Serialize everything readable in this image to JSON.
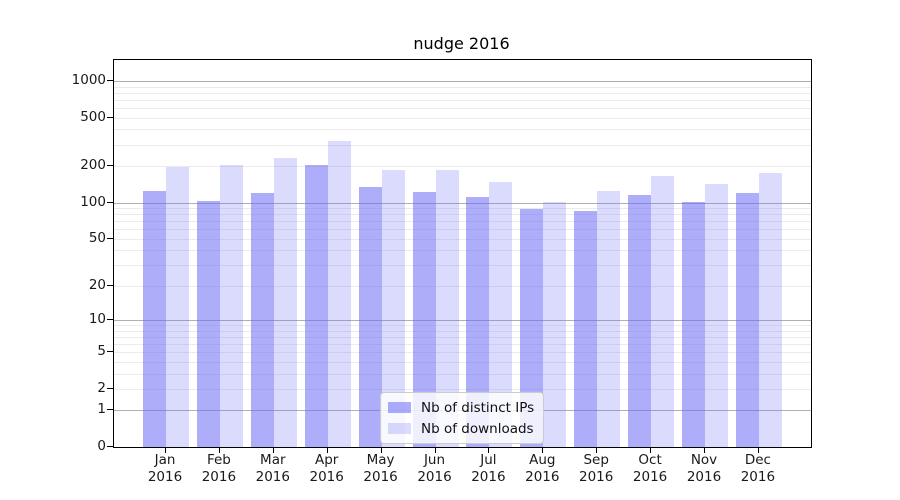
{
  "chart_data": {
    "type": "bar",
    "title": "nudge 2016",
    "months": [
      "Jan",
      "Feb",
      "Mar",
      "Apr",
      "May",
      "Jun",
      "Jul",
      "Aug",
      "Sep",
      "Oct",
      "Nov",
      "Dec"
    ],
    "year": "2016",
    "categories": [
      "Jan 2016",
      "Feb 2016",
      "Mar 2016",
      "Apr 2016",
      "May 2016",
      "Jun 2016",
      "Jul 2016",
      "Aug 2016",
      "Sep 2016",
      "Oct 2016",
      "Nov 2016",
      "Dec 2016"
    ],
    "series": [
      {
        "name": "Nb of distinct IPs",
        "key": "distinct-ips",
        "color": "rgba(105,105,245,0.55)",
        "values": [
          124,
          102,
          119,
          204,
          134,
          123,
          112,
          88,
          85,
          115,
          101,
          120
        ]
      },
      {
        "name": "Nb of downloads",
        "key": "downloads",
        "color": "rgba(105,105,245,0.24)",
        "values": [
          196,
          205,
          232,
          320,
          184,
          187,
          148,
          101,
          124,
          165,
          142,
          175
        ]
      }
    ],
    "xlabel": "",
    "ylabel": "",
    "yscale": "log1p",
    "ylim": [
      0,
      1480
    ],
    "yticks": [
      0,
      1,
      2,
      5,
      10,
      20,
      50,
      100,
      200,
      500,
      1000
    ],
    "grid": true,
    "legend_position": "lower center"
  },
  "colors": {
    "bar_dark_rendered": "#ababf8",
    "bar_light_rendered": "#dbdbf8",
    "grid_major": "#b0b0b0",
    "grid_minor": "#ebebeb",
    "axis": "#000000",
    "text": "#1a1a1a"
  }
}
